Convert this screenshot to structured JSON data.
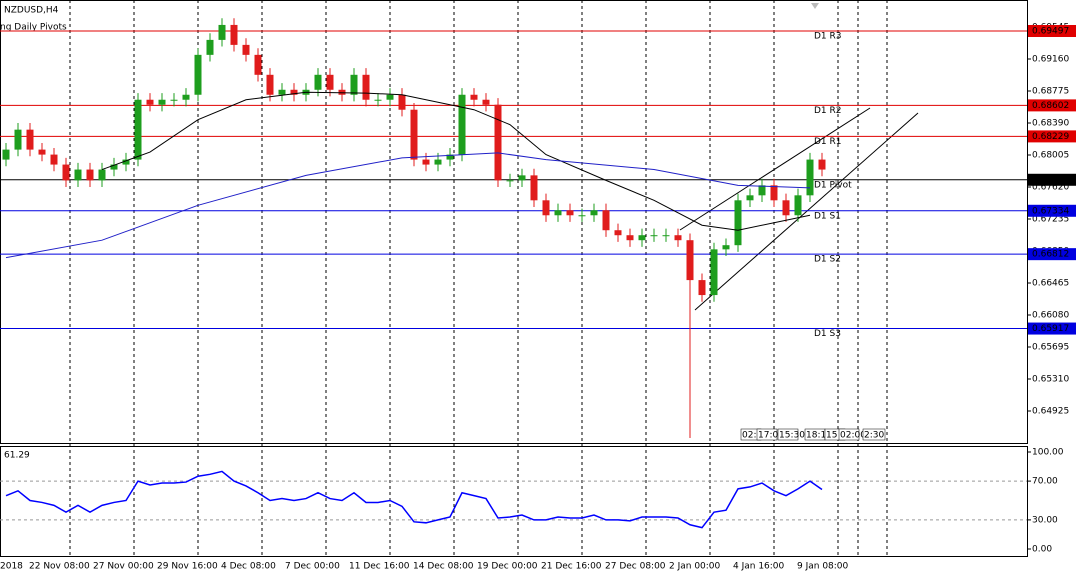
{
  "chart_data": {
    "type": "candlestick",
    "title": "NZDUSD,H4",
    "subtitle": "ng Daily Pivots",
    "open": [
      0.6795,
      0.6807,
      0.6831,
      0.6807,
      0.6801,
      0.6789,
      0.677,
      0.6783,
      0.677,
      0.6783,
      0.6789,
      0.6795,
      0.6867,
      0.6861,
      0.6867,
      0.6867,
      0.6873,
      0.6921,
      0.6939,
      0.6957,
      0.6933,
      0.6921,
      0.6897,
      0.6873,
      0.6879,
      0.6873,
      0.6879,
      0.6897,
      0.6879,
      0.6873,
      0.6897,
      0.6867,
      0.6867,
      0.6873,
      0.6855,
      0.6795,
      0.6789,
      0.6795,
      0.6801,
      0.6873,
      0.6867,
      0.6861,
      0.677,
      0.677,
      0.6776,
      0.6746,
      0.6728,
      0.6734,
      0.6728,
      0.6728,
      0.6734,
      0.671,
      0.6704,
      0.6698,
      0.6704,
      0.6704,
      0.6704,
      0.6698,
      0.665,
      0.6632,
      0.6687,
      0.6692,
      0.6746,
      0.6752,
      0.6764,
      0.6746,
      0.6728,
      0.6752,
      0.6795
    ],
    "high": [
      0.6815,
      0.6839,
      0.6839,
      0.6815,
      0.6809,
      0.6797,
      0.6791,
      0.6791,
      0.6791,
      0.6797,
      0.6803,
      0.6875,
      0.6875,
      0.6875,
      0.6875,
      0.6881,
      0.6929,
      0.6947,
      0.6965,
      0.6965,
      0.6941,
      0.6929,
      0.6905,
      0.6887,
      0.6887,
      0.6887,
      0.6905,
      0.6905,
      0.6887,
      0.6905,
      0.6905,
      0.6875,
      0.6881,
      0.6881,
      0.6863,
      0.6803,
      0.6803,
      0.6809,
      0.6881,
      0.6881,
      0.6875,
      0.6869,
      0.6778,
      0.6784,
      0.6784,
      0.6754,
      0.6742,
      0.6742,
      0.6736,
      0.6742,
      0.6742,
      0.6718,
      0.6712,
      0.6712,
      0.6712,
      0.6712,
      0.6712,
      0.6706,
      0.6658,
      0.6695,
      0.67,
      0.6754,
      0.676,
      0.6772,
      0.6772,
      0.6754,
      0.676,
      0.6803,
      0.6803
    ],
    "low": [
      0.6787,
      0.6799,
      0.6799,
      0.6793,
      0.6781,
      0.6762,
      0.6762,
      0.6762,
      0.6762,
      0.6775,
      0.6781,
      0.6787,
      0.6853,
      0.6853,
      0.6859,
      0.6859,
      0.6865,
      0.6913,
      0.6931,
      0.6925,
      0.6913,
      0.6889,
      0.6865,
      0.6865,
      0.6865,
      0.6865,
      0.6871,
      0.6871,
      0.6865,
      0.6865,
      0.6859,
      0.6859,
      0.6859,
      0.6847,
      0.6787,
      0.6781,
      0.6781,
      0.6787,
      0.6793,
      0.6859,
      0.6853,
      0.6762,
      0.6762,
      0.6762,
      0.6738,
      0.672,
      0.672,
      0.672,
      0.672,
      0.672,
      0.6702,
      0.6696,
      0.669,
      0.669,
      0.6696,
      0.6696,
      0.669,
      0.646,
      0.6624,
      0.6624,
      0.6679,
      0.6684,
      0.6738,
      0.6744,
      0.6738,
      0.672,
      0.672,
      0.6744,
      0.6775
    ],
    "close": [
      0.6807,
      0.6831,
      0.6807,
      0.6801,
      0.6789,
      0.677,
      0.6783,
      0.677,
      0.6783,
      0.6789,
      0.6795,
      0.6867,
      0.6861,
      0.6867,
      0.6867,
      0.6873,
      0.6921,
      0.6939,
      0.6957,
      0.6933,
      0.6921,
      0.6897,
      0.6873,
      0.6879,
      0.6873,
      0.6879,
      0.6897,
      0.6879,
      0.6873,
      0.6897,
      0.6867,
      0.6867,
      0.6873,
      0.6855,
      0.6795,
      0.6789,
      0.6795,
      0.6801,
      0.6873,
      0.6867,
      0.6861,
      0.677,
      0.677,
      0.6776,
      0.6746,
      0.6728,
      0.6734,
      0.6728,
      0.6728,
      0.6734,
      0.671,
      0.6704,
      0.6698,
      0.6704,
      0.6704,
      0.6704,
      0.6698,
      0.665,
      0.6632,
      0.6687,
      0.6692,
      0.6746,
      0.6752,
      0.6764,
      0.6746,
      0.6728,
      0.6752,
      0.6795,
      0.6783
    ],
    "up_color": "#1e9e1e",
    "down_color": "#e01c1c",
    "ylim": [
      0.6454,
      0.6987
    ],
    "yticks": [
      0.69545,
      {
        "value": 0.6916,
        "label": "0.69160"
      },
      0.68775,
      {
        "value": 0.6839,
        "label": "0.68390"
      },
      0.68005,
      {
        "value": 0.6762,
        "label": "0.67620"
      },
      0.67235,
      {
        "value": 0.6685,
        "label": "0.66850"
      },
      0.66465,
      {
        "value": 0.6608,
        "label": "0.66080"
      },
      0.65695,
      {
        "value": 0.6531,
        "label": "0.65310"
      },
      0.64925
    ],
    "series": [
      {
        "color": "#000000",
        "x": [
          8,
          12,
          16,
          20,
          25,
          30,
          33,
          35,
          39,
          42,
          45,
          50,
          54,
          58,
          61,
          65,
          67
        ],
        "values": [
          0.6783,
          0.6804,
          0.6843,
          0.6867,
          0.6876,
          0.6875,
          0.6873,
          0.6867,
          0.6855,
          0.6837,
          0.6801,
          0.677,
          0.6746,
          0.6716,
          0.671,
          0.6722,
          0.6728
        ]
      },
      {
        "color": "#2020c8",
        "x": [
          0,
          8,
          16,
          25,
          33,
          41,
          45,
          54,
          61,
          67
        ],
        "values": [
          0.6677,
          0.6698,
          0.674,
          0.6776,
          0.6797,
          0.6803,
          0.6795,
          0.6783,
          0.6764,
          0.6761
        ]
      }
    ],
    "pivots": [
      {
        "name": "D1 R3",
        "value": 0.69497,
        "color": "#e00000"
      },
      {
        "name": "D1 R2",
        "value": 0.68602,
        "color": "#e00000"
      },
      {
        "name": "D1 R1",
        "value": 0.68229,
        "color": "#e00000"
      },
      {
        "name": "D1 Pivot",
        "value": 0.67707,
        "color": "#000000"
      },
      {
        "name": "D1 S1",
        "value": 0.67334,
        "color": "#0000e0"
      },
      {
        "name": "D1 S2",
        "value": 0.66812,
        "color": "#0000e0"
      },
      {
        "name": "D1 S3",
        "value": 0.65917,
        "color": "#0000e0"
      }
    ],
    "x_labels": [
      "2018",
      "22 Nov 08:00",
      "27 Nov 00:00",
      "29 Nov 16:00",
      "4 Dec 08:00",
      "7 Dec 00:00",
      "11 Dec 16:00",
      "14 Dec 08:00",
      "19 Dec 00:00",
      "21 Dec 16:00",
      "27 Dec 08:00",
      "2 Jan 00:00",
      "4 Jan 16:00",
      "9 Jan 08:00"
    ],
    "overlay_labels": [
      "02:",
      "17:0",
      "15:30",
      "18:15",
      "15",
      "02:00",
      "2:30"
    ],
    "rsi": {
      "color": "#0000ff",
      "ylim": [
        0,
        100
      ],
      "yticks": [
        {
          "value": 100,
          "label": "100.00"
        },
        {
          "value": 70,
          "label": "70.00"
        },
        {
          "value": 30,
          "label": "30.00"
        },
        {
          "value": 0,
          "label": "0.00"
        }
      ],
      "values": [
        55,
        60,
        50,
        48,
        45,
        38,
        45,
        38,
        45,
        48,
        50,
        70,
        66,
        68,
        68,
        69,
        75,
        77,
        80,
        70,
        65,
        58,
        50,
        52,
        50,
        52,
        58,
        52,
        50,
        58,
        48,
        48,
        50,
        44,
        28,
        27,
        30,
        33,
        58,
        55,
        52,
        32,
        33,
        35,
        30,
        30,
        33,
        32,
        32,
        35,
        30,
        30,
        29,
        33,
        33,
        33,
        32,
        25,
        22,
        38,
        40,
        62,
        64,
        68,
        60,
        55,
        62,
        70,
        61.29
      ]
    }
  }
}
